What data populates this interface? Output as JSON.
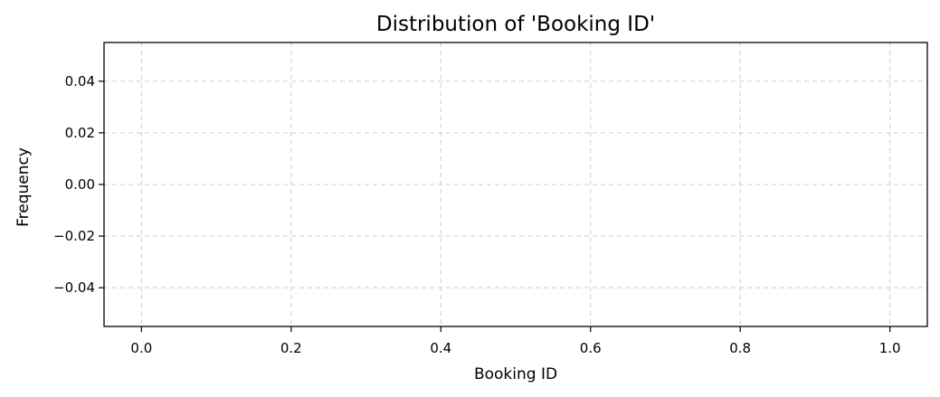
{
  "chart_data": {
    "type": "bar",
    "title": "Distribution of 'Booking ID'",
    "xlabel": "Booking ID",
    "ylabel": "Frequency",
    "x": [],
    "values": [],
    "xlim": [
      -0.05,
      1.05
    ],
    "ylim": [
      -0.055,
      0.055
    ],
    "xticks": [
      0.0,
      0.2,
      0.4,
      0.6,
      0.8,
      1.0
    ],
    "xtick_labels": [
      "0.0",
      "0.2",
      "0.4",
      "0.6",
      "0.8",
      "1.0"
    ],
    "yticks": [
      0.04,
      0.02,
      0.0,
      -0.02,
      -0.04
    ],
    "ytick_labels": [
      "0.04",
      "0.02",
      "0.00",
      "−0.02",
      "−0.04"
    ],
    "grid": true,
    "grid_color": "#cccccc",
    "axis_color": "#000000"
  }
}
